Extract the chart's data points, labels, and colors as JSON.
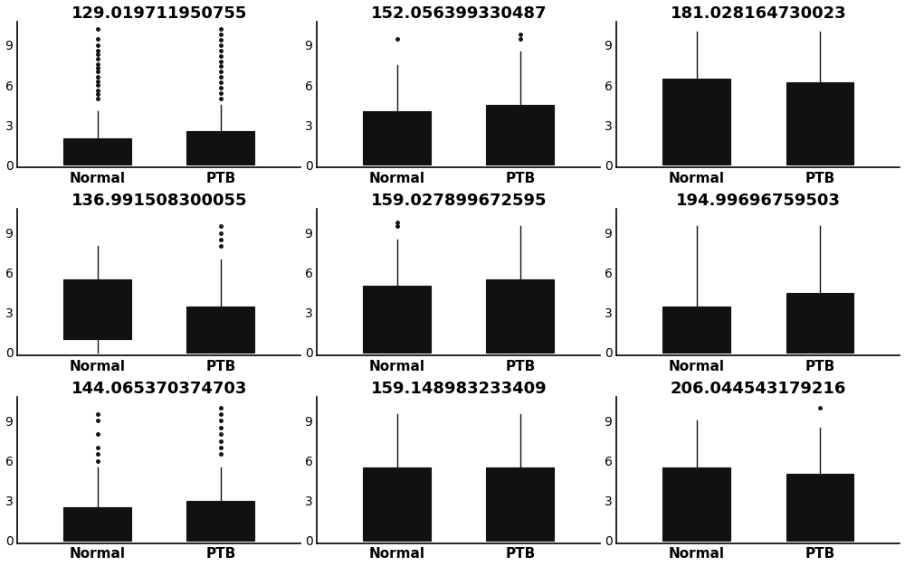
{
  "titles": [
    "129.019711950755",
    "152.056399330487",
    "181.028164730023",
    "136.991508300055",
    "159.027899672595",
    "194.99696759503",
    "144.065370374703",
    "159.148983233409",
    "206.044543179216"
  ],
  "plots": [
    {
      "Normal": {
        "q1": 0.0,
        "median": 0.3,
        "q3": 2.0,
        "whislo": 0.0,
        "whishi": 4.0,
        "fliers": [
          5.0,
          5.3,
          5.6,
          6.0,
          6.3,
          6.6,
          7.0,
          7.3,
          7.6,
          8.0,
          8.3,
          8.6,
          9.0,
          9.5,
          10.2
        ]
      },
      "PTB": {
        "q1": 0.0,
        "median": 0.5,
        "q3": 2.5,
        "whislo": 0.0,
        "whishi": 4.5,
        "fliers": [
          5.0,
          5.4,
          5.8,
          6.2,
          6.6,
          7.0,
          7.4,
          7.8,
          8.2,
          8.6,
          9.0,
          9.4,
          9.8,
          10.2
        ]
      }
    },
    {
      "Normal": {
        "q1": 0.0,
        "median": 2.0,
        "q3": 4.0,
        "whislo": 0.0,
        "whishi": 7.5,
        "fliers": [
          9.5
        ]
      },
      "PTB": {
        "q1": 0.0,
        "median": 2.5,
        "q3": 4.5,
        "whislo": 0.0,
        "whishi": 8.5,
        "fliers": [
          9.5,
          9.8
        ]
      }
    },
    {
      "Normal": {
        "q1": 0.0,
        "median": 3.5,
        "q3": 6.5,
        "whislo": 0.0,
        "whishi": 10.0,
        "fliers": []
      },
      "PTB": {
        "q1": 0.0,
        "median": 3.5,
        "q3": 6.2,
        "whislo": 0.0,
        "whishi": 10.0,
        "fliers": []
      }
    },
    {
      "Normal": {
        "q1": 1.0,
        "median": 3.5,
        "q3": 5.5,
        "whislo": 0.0,
        "whishi": 8.0,
        "fliers": []
      },
      "PTB": {
        "q1": 0.0,
        "median": 1.5,
        "q3": 3.5,
        "whislo": 0.0,
        "whishi": 7.0,
        "fliers": [
          8.0,
          8.5,
          9.0,
          9.5
        ]
      }
    },
    {
      "Normal": {
        "q1": 0.0,
        "median": 2.5,
        "q3": 5.0,
        "whislo": 0.0,
        "whishi": 8.5,
        "fliers": [
          9.5,
          9.8
        ]
      },
      "PTB": {
        "q1": 0.0,
        "median": 3.0,
        "q3": 5.5,
        "whislo": 0.0,
        "whishi": 9.5,
        "fliers": []
      }
    },
    {
      "Normal": {
        "q1": 0.0,
        "median": 2.0,
        "q3": 3.5,
        "whislo": 0.0,
        "whishi": 9.5,
        "fliers": []
      },
      "PTB": {
        "q1": 0.0,
        "median": 3.0,
        "q3": 4.5,
        "whislo": 0.0,
        "whishi": 9.5,
        "fliers": []
      }
    },
    {
      "Normal": {
        "q1": 0.0,
        "median": 1.5,
        "q3": 2.5,
        "whislo": 0.0,
        "whishi": 5.5,
        "fliers": [
          6.0,
          6.5,
          7.0,
          8.0,
          9.0,
          9.5
        ]
      },
      "PTB": {
        "q1": 0.0,
        "median": 2.0,
        "q3": 3.0,
        "whislo": 0.0,
        "whishi": 5.5,
        "fliers": [
          6.5,
          7.0,
          7.5,
          8.0,
          8.5,
          9.0,
          9.5,
          10.0
        ]
      }
    },
    {
      "Normal": {
        "q1": 0.0,
        "median": 3.5,
        "q3": 5.5,
        "whislo": 0.0,
        "whishi": 9.5,
        "fliers": []
      },
      "PTB": {
        "q1": 0.0,
        "median": 3.5,
        "q3": 5.5,
        "whislo": 0.0,
        "whishi": 9.5,
        "fliers": []
      }
    },
    {
      "Normal": {
        "q1": 0.0,
        "median": 3.5,
        "q3": 5.5,
        "whislo": 0.0,
        "whishi": 9.0,
        "fliers": []
      },
      "PTB": {
        "q1": 0.0,
        "median": 3.5,
        "q3": 5.0,
        "whislo": 0.0,
        "whishi": 8.5,
        "fliers": [
          10.0
        ]
      }
    }
  ],
  "ylim": [
    -0.2,
    10.8
  ],
  "yticks": [
    0,
    3,
    6,
    9
  ],
  "categories": [
    "Normal",
    "PTB"
  ],
  "box_color": "#111111",
  "flier_color": "#111111",
  "background_color": "white",
  "grid_rows": 3,
  "grid_cols": 3,
  "title_fontsize": 13,
  "tick_fontsize": 10,
  "label_fontsize": 11
}
